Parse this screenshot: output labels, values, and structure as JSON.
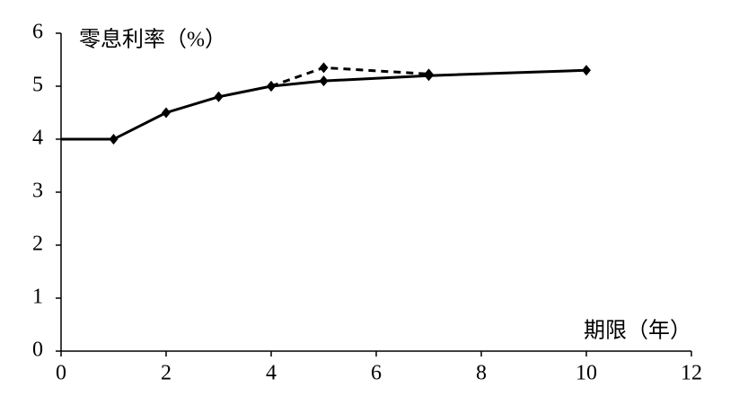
{
  "chart_data": {
    "type": "line",
    "y_label": "零息利率（%）",
    "x_label": "期限（年）",
    "xlim": [
      0,
      12
    ],
    "xticks": [
      0,
      2,
      4,
      6,
      8,
      10,
      12
    ],
    "ylim": [
      0,
      6
    ],
    "yticks": [
      0,
      1,
      2,
      3,
      4,
      5,
      6
    ],
    "series": [
      {
        "color": "#000000",
        "dash": false,
        "x": [
          0,
          1,
          2,
          3,
          4,
          5,
          7,
          10
        ],
        "values": [
          4,
          4,
          4.5,
          4.8,
          5.0,
          5.1,
          5.2,
          5.3
        ]
      },
      {
        "color": "#000000",
        "dash": true,
        "x": [
          4,
          5,
          7
        ],
        "values": [
          5.0,
          5.35,
          5.23
        ]
      }
    ]
  }
}
